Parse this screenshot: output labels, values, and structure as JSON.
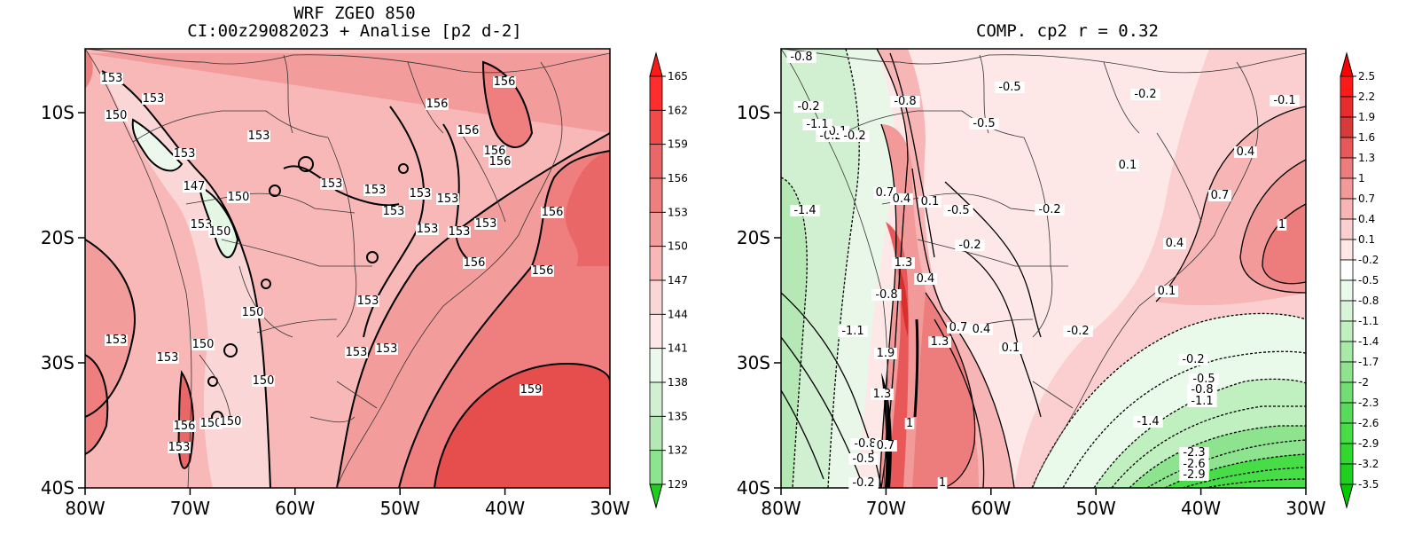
{
  "left": {
    "title_line1": "WRF ZGEO 850",
    "title_line2": "CI:00z29082023 + Analise  [p2 d-2]",
    "x_ticks": [
      "80W",
      "70W",
      "60W",
      "50W",
      "40W",
      "30W"
    ],
    "y_ticks": [
      "10S",
      "20S",
      "30S",
      "40S"
    ],
    "colorbar_values": [
      "165",
      "162",
      "159",
      "156",
      "153",
      "150",
      "147",
      "144",
      "141",
      "138",
      "135",
      "132",
      "129"
    ],
    "contour_labels": [
      "153",
      "153",
      "150",
      "153",
      "153",
      "147",
      "150",
      "153",
      "150",
      "153",
      "153",
      "153",
      "153",
      "156",
      "156",
      "156",
      "156",
      "156",
      "153",
      "153",
      "153",
      "153",
      "156",
      "156",
      "156",
      "153",
      "150",
      "153",
      "153",
      "150",
      "153",
      "153",
      "150",
      "156",
      "150",
      "150",
      "153",
      "159"
    ]
  },
  "right": {
    "title": "COMP. cp2  r =  0.32",
    "x_ticks": [
      "80W",
      "70W",
      "60W",
      "50W",
      "40W",
      "30W"
    ],
    "y_ticks": [
      "10S",
      "20S",
      "30S",
      "40S"
    ],
    "colorbar_values": [
      "2.5",
      "2.2",
      "1.9",
      "1.6",
      "1.3",
      "1",
      "0.7",
      "0.4",
      "0.1",
      "-0.2",
      "-0.5",
      "-0.8",
      "-1.1",
      "-1.4",
      "-1.7",
      "-2",
      "-2.3",
      "-2.6",
      "-2.9",
      "-3.2",
      "-3.5"
    ],
    "contour_labels": [
      "-0.8",
      "-0.5",
      "-0.8",
      "-0.5",
      "-0.2",
      "0.1",
      "0.1",
      "-0.2",
      "0.4",
      "0.7",
      "-1.4",
      "0.7",
      "0.4",
      "0.1",
      "-0.5",
      "-0.2",
      "1",
      "0.4",
      "-0.2",
      "1.3",
      "0.4",
      "0.1",
      "-0.8",
      "0.7",
      "0.4",
      "-0.2",
      "-1.1",
      "1.3",
      "0.1",
      "1.9",
      "-0.2",
      "-0.5",
      "-0.8",
      "-1.1",
      "1.3",
      "-1.4",
      "1",
      "-2.3",
      "-2.6",
      "-2.9",
      "-0.8",
      "0.7",
      "-0.5",
      "-0.2",
      "1",
      "-0.1",
      "-0.2",
      "-1.1",
      "-0.2"
    ]
  }
}
